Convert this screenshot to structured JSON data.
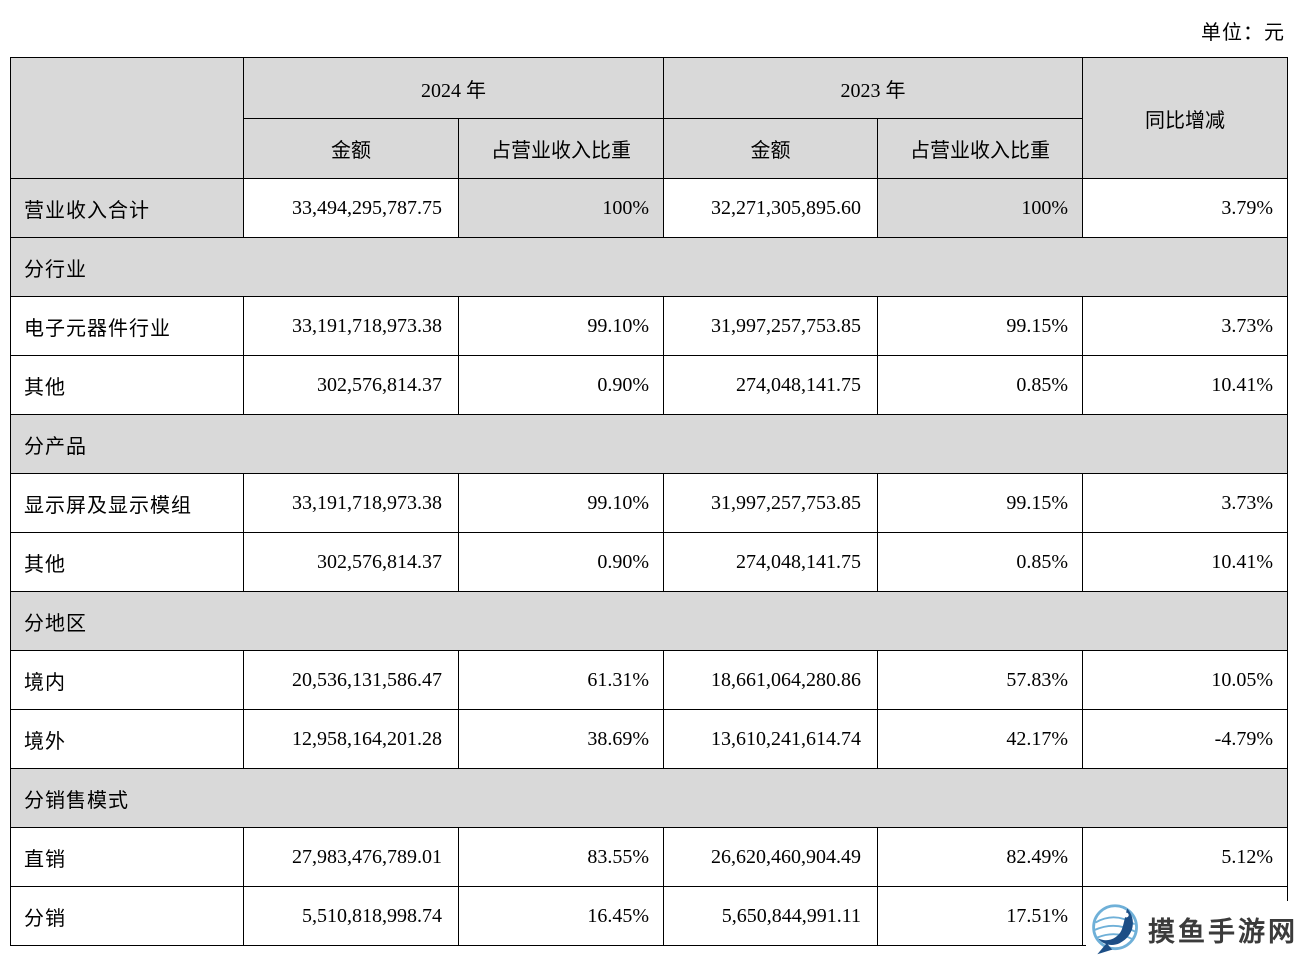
{
  "unit_label": "单位：元",
  "colors": {
    "shade": "#d9d9d9",
    "border": "#000000",
    "wm_text": "#3b3b3b",
    "wm_blue_dark": "#1c4e86",
    "wm_blue_light": "#6fb0d8"
  },
  "table": {
    "header": {
      "year_2024": "2024 年",
      "year_2023": "2023 年",
      "amount_2024": "金额",
      "ratio_2024": "占营业收入比重",
      "amount_2023": "金额",
      "ratio_2023": "占营业收入比重",
      "yoy": "同比增减"
    },
    "rows": [
      {
        "type": "total",
        "label": "营业收入合计",
        "a2024": "33,494,295,787.75",
        "r2024": "100%",
        "a2023": "32,271,305,895.60",
        "r2023": "100%",
        "yoy": "3.79%"
      },
      {
        "type": "section",
        "label": "分行业"
      },
      {
        "type": "data",
        "label": "电子元器件行业",
        "a2024": "33,191,718,973.38",
        "r2024": "99.10%",
        "a2023": "31,997,257,753.85",
        "r2023": "99.15%",
        "yoy": "3.73%"
      },
      {
        "type": "data",
        "label": "其他",
        "a2024": "302,576,814.37",
        "r2024": "0.90%",
        "a2023": "274,048,141.75",
        "r2023": "0.85%",
        "yoy": "10.41%"
      },
      {
        "type": "section",
        "label": "分产品"
      },
      {
        "type": "data",
        "label": "显示屏及显示模组",
        "a2024": "33,191,718,973.38",
        "r2024": "99.10%",
        "a2023": "31,997,257,753.85",
        "r2023": "99.15%",
        "yoy": "3.73%"
      },
      {
        "type": "data",
        "label": "其他",
        "a2024": "302,576,814.37",
        "r2024": "0.90%",
        "a2023": "274,048,141.75",
        "r2023": "0.85%",
        "yoy": "10.41%"
      },
      {
        "type": "section",
        "label": "分地区"
      },
      {
        "type": "data",
        "label": "境内",
        "a2024": "20,536,131,586.47",
        "r2024": "61.31%",
        "a2023": "18,661,064,280.86",
        "r2023": "57.83%",
        "yoy": "10.05%"
      },
      {
        "type": "data",
        "label": "境外",
        "a2024": "12,958,164,201.28",
        "r2024": "38.69%",
        "a2023": "13,610,241,614.74",
        "r2023": "42.17%",
        "yoy": "-4.79%"
      },
      {
        "type": "section",
        "label": "分销售模式"
      },
      {
        "type": "data",
        "label": "直销",
        "a2024": "27,983,476,789.01",
        "r2024": "83.55%",
        "a2023": "26,620,460,904.49",
        "r2023": "82.49%",
        "yoy": "5.12%"
      },
      {
        "type": "data",
        "label": "分销",
        "a2024": "5,510,818,998.74",
        "r2024": "16.45%",
        "a2023": "5,650,844,991.11",
        "r2023": "17.51%",
        "yoy": ""
      }
    ]
  },
  "watermark": {
    "text": "摸鱼手游网",
    "logo": "fish-globe-logo"
  }
}
